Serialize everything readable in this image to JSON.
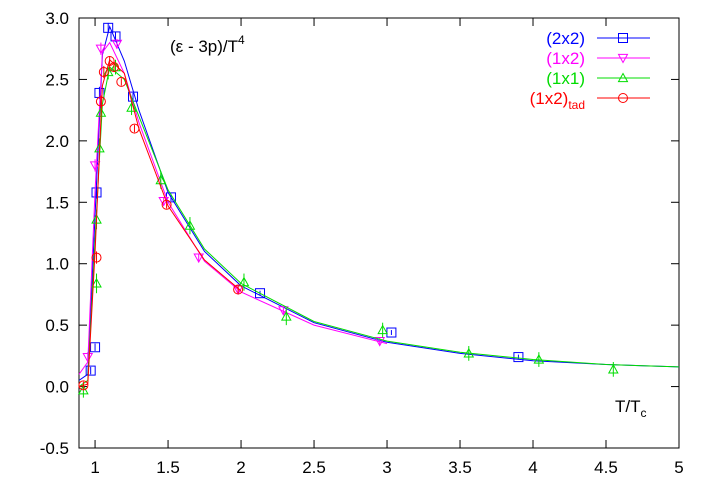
{
  "chart_data": {
    "type": "scatter",
    "annotation": "(ε - 3p)/T",
    "annotation_superscript": "4",
    "xlabel": "T/T",
    "xlabel_subscript": "c",
    "xlim": [
      0.89,
      5
    ],
    "ylim": [
      -0.5,
      3.0
    ],
    "xticks": [
      1,
      1.5,
      2,
      2.5,
      3,
      3.5,
      4,
      4.5,
      5
    ],
    "yticks": [
      {
        "value": 3,
        "label": "3.0"
      },
      2.5,
      {
        "value": 2,
        "label": "2.0"
      },
      1.5,
      {
        "value": 1,
        "label": "1.0"
      },
      0.5,
      {
        "value": 0,
        "label": "0.0"
      },
      -0.5
    ],
    "legend": "upper right",
    "series": [
      {
        "name": "(2x2)",
        "color": "#0000ff",
        "marker": "square",
        "x": [
          0.97,
          1.0,
          1.01,
          1.03,
          1.09,
          1.14,
          1.26,
          1.52,
          2.13,
          3.03,
          3.9
        ],
        "values": [
          0.13,
          0.32,
          1.58,
          2.39,
          2.92,
          2.85,
          2.36,
          1.54,
          0.76,
          0.44,
          0.24
        ],
        "errors": [
          0.03,
          0.03,
          0.05,
          0.05,
          0.04,
          0.04,
          0.03,
          0.03,
          0.02,
          0.02,
          0.02
        ],
        "fit": {
          "x": [
            0.89,
            0.95,
            1.0,
            1.05,
            1.1,
            1.2,
            1.3,
            1.5,
            1.75,
            2,
            2.5,
            3,
            3.5,
            4,
            4.5,
            5
          ],
          "y": [
            0.05,
            0.1,
            1.4,
            2.7,
            2.93,
            2.65,
            2.25,
            1.58,
            1.1,
            0.82,
            0.52,
            0.36,
            0.27,
            0.21,
            0.18,
            0.16
          ]
        }
      },
      {
        "name": "(1x2)",
        "color": "#ff00ff",
        "marker": "triangle-down",
        "x": [
          0.95,
          1.0,
          1.04,
          1.15,
          1.47,
          1.71,
          1.98,
          2.29,
          2.95
        ],
        "values": [
          0.24,
          1.8,
          2.75,
          2.79,
          1.51,
          1.05,
          0.79,
          0.62,
          0.37
        ],
        "errors": [
          0.04,
          0.05,
          0.05,
          0.04,
          0.03,
          0.03,
          0.03,
          0.03,
          0.03
        ],
        "fit": {
          "x": [
            0.89,
            0.95,
            1.0,
            1.05,
            1.1,
            1.2,
            1.3,
            1.5,
            1.75,
            2,
            2.5,
            3
          ],
          "y": [
            0.1,
            0.2,
            1.6,
            2.72,
            2.8,
            2.55,
            2.15,
            1.5,
            1.02,
            0.77,
            0.5,
            0.35
          ]
        }
      },
      {
        "name": "(1x1)",
        "color": "#00dd00",
        "marker": "triangle-up",
        "x": [
          0.92,
          1.01,
          1.01,
          1.03,
          1.04,
          1.09,
          1.14,
          1.25,
          1.45,
          1.65,
          2.02,
          2.31,
          2.97,
          3.56,
          4.04,
          4.55
        ],
        "values": [
          -0.03,
          0.84,
          1.36,
          1.94,
          2.23,
          2.56,
          2.6,
          2.27,
          1.68,
          1.31,
          0.85,
          0.57,
          0.46,
          0.27,
          0.22,
          0.14
        ],
        "errors": [
          0.06,
          0.08,
          0.08,
          0.08,
          0.08,
          0.06,
          0.06,
          0.06,
          0.07,
          0.07,
          0.07,
          0.07,
          0.06,
          0.06,
          0.06,
          0.06
        ],
        "fit": {
          "x": [
            0.89,
            0.95,
            1.0,
            1.05,
            1.1,
            1.2,
            1.3,
            1.5,
            1.75,
            2,
            2.5,
            3,
            3.5,
            4,
            4.5,
            5
          ],
          "y": [
            0.0,
            0.05,
            1.2,
            2.3,
            2.6,
            2.5,
            2.2,
            1.6,
            1.12,
            0.84,
            0.53,
            0.37,
            0.28,
            0.22,
            0.18,
            0.16
          ]
        }
      },
      {
        "name": "(1x2)",
        "name_subscript": "tad",
        "color": "#ff0000",
        "marker": "circle",
        "x": [
          0.92,
          1.01,
          1.04,
          1.06,
          1.1,
          1.13,
          1.18,
          1.27,
          1.49,
          1.98
        ],
        "values": [
          0.01,
          1.05,
          2.32,
          2.56,
          2.65,
          2.6,
          2.48,
          2.1,
          1.48,
          0.79
        ],
        "errors": [
          0.03,
          0.05,
          0.05,
          0.05,
          0.04,
          0.04,
          0.03,
          0.03,
          0.03,
          0.03
        ],
        "fit": {
          "x": [
            0.89,
            0.95,
            1.0,
            1.05,
            1.1,
            1.2,
            1.3,
            1.5,
            1.75,
            2
          ],
          "y": [
            0.0,
            0.02,
            1.1,
            2.45,
            2.66,
            2.55,
            2.1,
            1.47,
            1.03,
            0.78
          ]
        }
      }
    ]
  }
}
